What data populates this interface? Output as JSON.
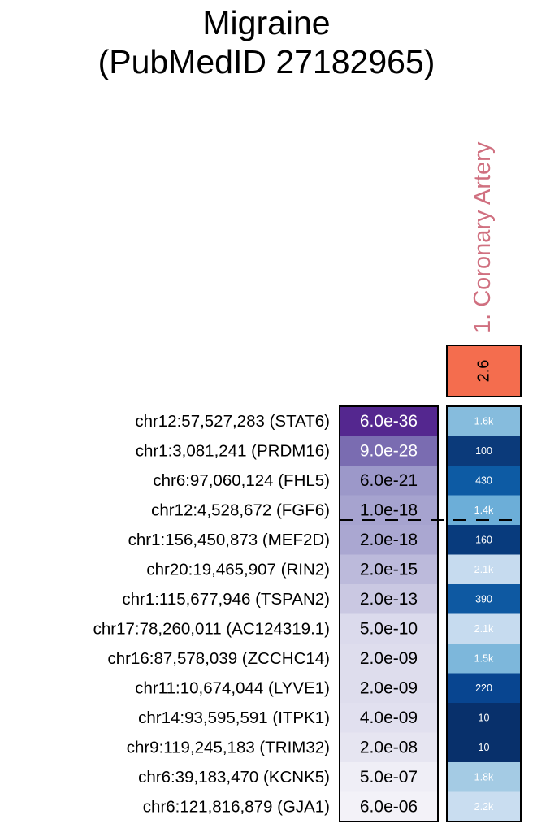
{
  "title": {
    "line1": "Migraine",
    "line2": "(PubMedID 27182965)"
  },
  "chart_data": {
    "type": "heatmap",
    "title": "Migraine (PubMedID 27182965)",
    "columns": [
      {
        "label": "1. Coronary Artery",
        "label_color": "#d07080",
        "header_value": "2.6",
        "header_color": "#f46d4e"
      }
    ],
    "rows": [
      {
        "label": "chr12:57,527,283 (STAT6)",
        "pvalue": "6.0e-36",
        "pcolor": "#54278f",
        "ptext": "#ffffff",
        "cell": "1.6k",
        "ccolor": "#86bcdd"
      },
      {
        "label": "chr1:3,081,241 (PRDM16)",
        "pvalue": "9.0e-28",
        "pcolor": "#7a6cb1",
        "ptext": "#ffffff",
        "cell": "100",
        "ccolor": "#0b3a7a"
      },
      {
        "label": "chr6:97,060,124 (FHL5)",
        "pvalue": "6.0e-21",
        "pcolor": "#9c98c9",
        "ptext": "#000000",
        "cell": "430",
        "ccolor": "#0d5ba4"
      },
      {
        "label": "chr12:4,528,672 (FGF6)",
        "pvalue": "1.0e-18",
        "pcolor": "#a6a3cf",
        "ptext": "#000000",
        "cell": "1.4k",
        "ccolor": "#6caed8"
      },
      {
        "label": "chr1:156,450,873 (MEF2D)",
        "pvalue": "2.0e-18",
        "pcolor": "#aaa7d1",
        "ptext": "#000000",
        "cell": "160",
        "ccolor": "#083b7d"
      },
      {
        "label": "chr20:19,465,907 (RIN2)",
        "pvalue": "2.0e-15",
        "pcolor": "#bcbadb",
        "ptext": "#000000",
        "cell": "2.1k",
        "ccolor": "#c6dbef"
      },
      {
        "label": "chr1:115,677,946 (TSPAN2)",
        "pvalue": "2.0e-13",
        "pcolor": "#cac8e2",
        "ptext": "#000000",
        "cell": "390",
        "ccolor": "#0e59a2"
      },
      {
        "label": "chr17:78,260,011 (AC124319.1)",
        "pvalue": "5.0e-10",
        "pcolor": "#dbdaec",
        "ptext": "#000000",
        "cell": "2.1k",
        "ccolor": "#c6dbef"
      },
      {
        "label": "chr16:87,578,039 (ZCCHC14)",
        "pvalue": "2.0e-09",
        "pcolor": "#dedded",
        "ptext": "#000000",
        "cell": "1.5k",
        "ccolor": "#7db7db"
      },
      {
        "label": "chr11:10,674,044 (LYVE1)",
        "pvalue": "2.0e-09",
        "pcolor": "#dedded",
        "ptext": "#000000",
        "cell": "220",
        "ccolor": "#084590"
      },
      {
        "label": "chr14:93,595,591 (ITPK1)",
        "pvalue": "4.0e-09",
        "pcolor": "#e1e0ef",
        "ptext": "#000000",
        "cell": "10",
        "ccolor": "#08306b"
      },
      {
        "label": "chr9:119,245,183 (TRIM32)",
        "pvalue": "2.0e-08",
        "pcolor": "#e6e5f1",
        "ptext": "#000000",
        "cell": "10",
        "ccolor": "#08306b"
      },
      {
        "label": "chr6:39,183,470 (KCNK5)",
        "pvalue": "5.0e-07",
        "pcolor": "#efeef6",
        "ptext": "#000000",
        "cell": "1.8k",
        "ccolor": "#a4cbe4"
      },
      {
        "label": "chr6:121,816,879 (GJA1)",
        "pvalue": "6.0e-06",
        "pcolor": "#f3f2f8",
        "ptext": "#000000",
        "cell": "2.2k",
        "ccolor": "#c9ddf0"
      }
    ],
    "threshold_after_row": 4
  }
}
